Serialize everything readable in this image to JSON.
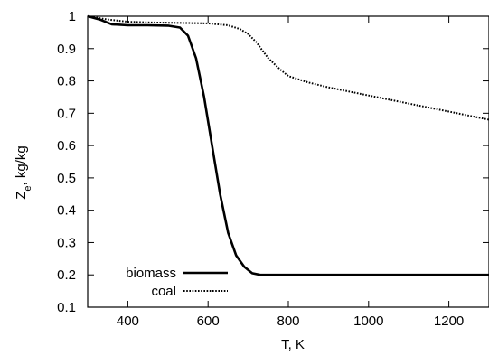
{
  "chart_data": {
    "type": "line",
    "title": "",
    "xlabel": "T, K",
    "ylabel_main": "Z",
    "ylabel_sub": "e",
    "ylabel_rest": ", kg/kg",
    "xlim": [
      300,
      1300
    ],
    "ylim": [
      0.1,
      1.0
    ],
    "xticks": [
      400,
      600,
      800,
      1000,
      1200
    ],
    "yticks": [
      0.1,
      0.2,
      0.3,
      0.4,
      0.5,
      0.6,
      0.7,
      0.8,
      0.9,
      1.0
    ],
    "xtick_labels": [
      "400",
      "600",
      "800",
      "1000",
      "1200"
    ],
    "ytick_labels": [
      "0.1",
      "0.2",
      "0.3",
      "0.4",
      "0.5",
      "0.6",
      "0.7",
      "0.8",
      "0.9",
      "1"
    ],
    "grid": false,
    "legend_position": "bottom-left",
    "series": [
      {
        "name": "biomass",
        "style": "solid",
        "color": "#000000",
        "x": [
          300,
          330,
          360,
          400,
          450,
          500,
          530,
          550,
          570,
          590,
          610,
          630,
          650,
          670,
          690,
          710,
          730,
          760,
          800,
          900,
          1000,
          1100,
          1200,
          1300
        ],
        "y": [
          1.0,
          0.99,
          0.975,
          0.972,
          0.972,
          0.971,
          0.965,
          0.94,
          0.87,
          0.75,
          0.6,
          0.45,
          0.33,
          0.26,
          0.225,
          0.205,
          0.2,
          0.2,
          0.2,
          0.2,
          0.2,
          0.2,
          0.2,
          0.2
        ]
      },
      {
        "name": "coal",
        "style": "dotted",
        "color": "#000000",
        "x": [
          300,
          350,
          400,
          450,
          500,
          550,
          600,
          650,
          680,
          700,
          720,
          750,
          780,
          800,
          850,
          900,
          1000,
          1100,
          1200,
          1300
        ],
        "y": [
          1.0,
          0.99,
          0.983,
          0.981,
          0.98,
          0.979,
          0.978,
          0.972,
          0.96,
          0.945,
          0.92,
          0.87,
          0.835,
          0.815,
          0.795,
          0.78,
          0.755,
          0.73,
          0.705,
          0.68
        ]
      }
    ]
  }
}
